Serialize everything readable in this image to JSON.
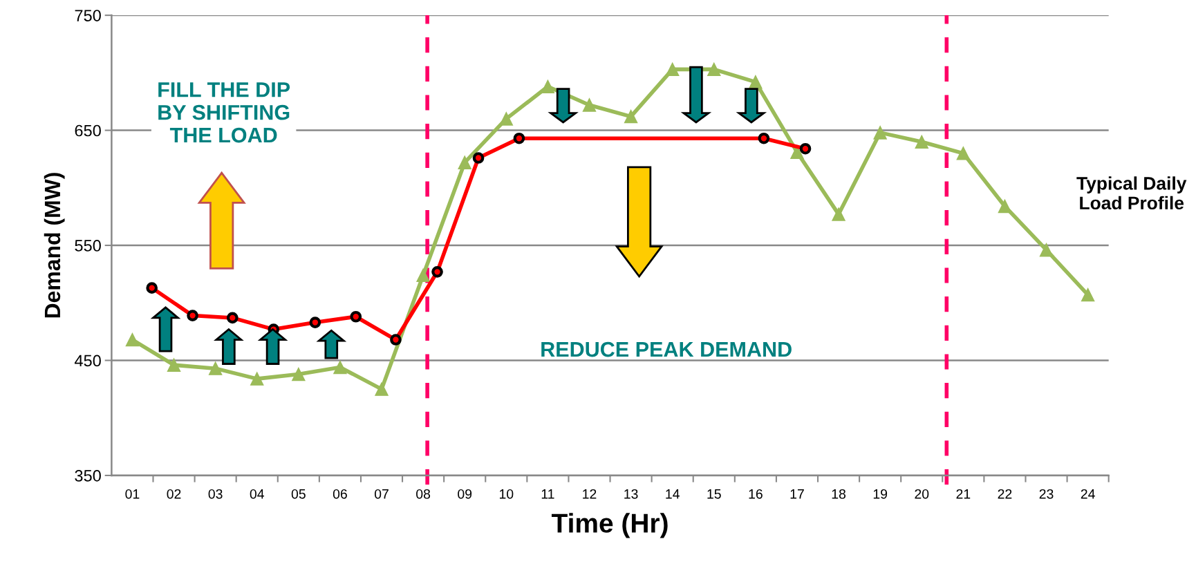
{
  "chart_data": {
    "type": "line",
    "xlabel": "Time (Hr)",
    "ylabel": "Demand (MW)",
    "xlim": [
      0.5,
      24.5
    ],
    "ylim": [
      350,
      750
    ],
    "yticks": [
      350,
      450,
      550,
      650,
      750
    ],
    "xticks": [
      {
        "value": 1,
        "label": "01"
      },
      {
        "value": 2,
        "label": "02"
      },
      {
        "value": 3,
        "label": "03"
      },
      {
        "value": 4,
        "label": "04"
      },
      {
        "value": 5,
        "label": "05"
      },
      {
        "value": 6,
        "label": "06"
      },
      {
        "value": 7,
        "label": "07"
      },
      {
        "value": 8,
        "label": "08"
      },
      {
        "value": 9,
        "label": "09"
      },
      {
        "value": 10,
        "label": "10"
      },
      {
        "value": 11,
        "label": "11"
      },
      {
        "value": 12,
        "label": "12"
      },
      {
        "value": 13,
        "label": "13"
      },
      {
        "value": 14,
        "label": "14"
      },
      {
        "value": 15,
        "label": "15"
      },
      {
        "value": 16,
        "label": "16"
      },
      {
        "value": 17,
        "label": "17"
      },
      {
        "value": 18,
        "label": "18"
      },
      {
        "value": 19,
        "label": "19"
      },
      {
        "value": 20,
        "label": "20"
      },
      {
        "value": 21,
        "label": "21"
      },
      {
        "value": 22,
        "label": "22"
      },
      {
        "value": 23,
        "label": "23"
      },
      {
        "value": 24,
        "label": "24"
      },
      {
        "value": 1.5,
        "label": null
      },
      {
        "value": 2.5,
        "label": null
      },
      {
        "value": 3.5,
        "label": null
      },
      {
        "value": 4.5,
        "label": null
      },
      {
        "value": 5.5,
        "label": null
      },
      {
        "value": 6.5,
        "label": null
      },
      {
        "value": 7.5,
        "label": null
      },
      {
        "value": 8.5,
        "label": null
      },
      {
        "value": 9.5,
        "label": null
      },
      {
        "value": 10.5,
        "label": null
      },
      {
        "value": 11.5,
        "label": null
      },
      {
        "value": 12.5,
        "label": null
      },
      {
        "value": 13.5,
        "label": null
      },
      {
        "value": 14.5,
        "label": null
      },
      {
        "value": 15.5,
        "label": null
      },
      {
        "value": 16.5,
        "label": null
      },
      {
        "value": 17.5,
        "label": null
      },
      {
        "value": 18.5,
        "label": null
      },
      {
        "value": 19.5,
        "label": null
      },
      {
        "value": 20.5,
        "label": null
      },
      {
        "value": 21.5,
        "label": null
      },
      {
        "value": 22.5,
        "label": null
      },
      {
        "value": 23.5,
        "label": null
      },
      {
        "value": 24.5,
        "label": null
      }
    ],
    "grid": "y",
    "line_style": "solid",
    "series": [
      {
        "color": "#9bbb59",
        "marker": "triangle",
        "x": [
          1,
          2,
          3,
          4,
          5,
          6,
          7,
          8,
          9,
          10,
          11,
          12,
          13,
          14,
          15,
          16,
          17,
          18,
          19,
          20,
          21,
          22,
          23,
          24
        ],
        "values": [
          468,
          446,
          443,
          434,
          438,
          444,
          425,
          524,
          622,
          660,
          688,
          672,
          662,
          703,
          703,
          692,
          631,
          577,
          648,
          640,
          630,
          584,
          546,
          507
        ]
      },
      {
        "color": "#ff0000",
        "marker": "circle",
        "x": [
          1.47,
          2.45,
          3.41,
          4.4,
          5.4,
          6.38,
          7.34,
          8.34,
          9.33,
          10.31,
          16.2,
          17.2
        ],
        "values": [
          513,
          489,
          487,
          477,
          483,
          488,
          468,
          527,
          626,
          643,
          643,
          634
        ]
      }
    ],
    "ref_lines": [
      {
        "axis": "x",
        "value": 8.1,
        "color": "#ff0066",
        "line_style": "dashed"
      },
      {
        "axis": "x",
        "value": 20.6,
        "color": "#ff0066",
        "line_style": "dashed"
      }
    ],
    "annotations": [
      "FILL THE DIP\nBY SHIFTING\nTHE LOAD",
      "REDUCE PEAK DEMAND",
      "Typical Daily\nLoad Profile"
    ]
  }
}
